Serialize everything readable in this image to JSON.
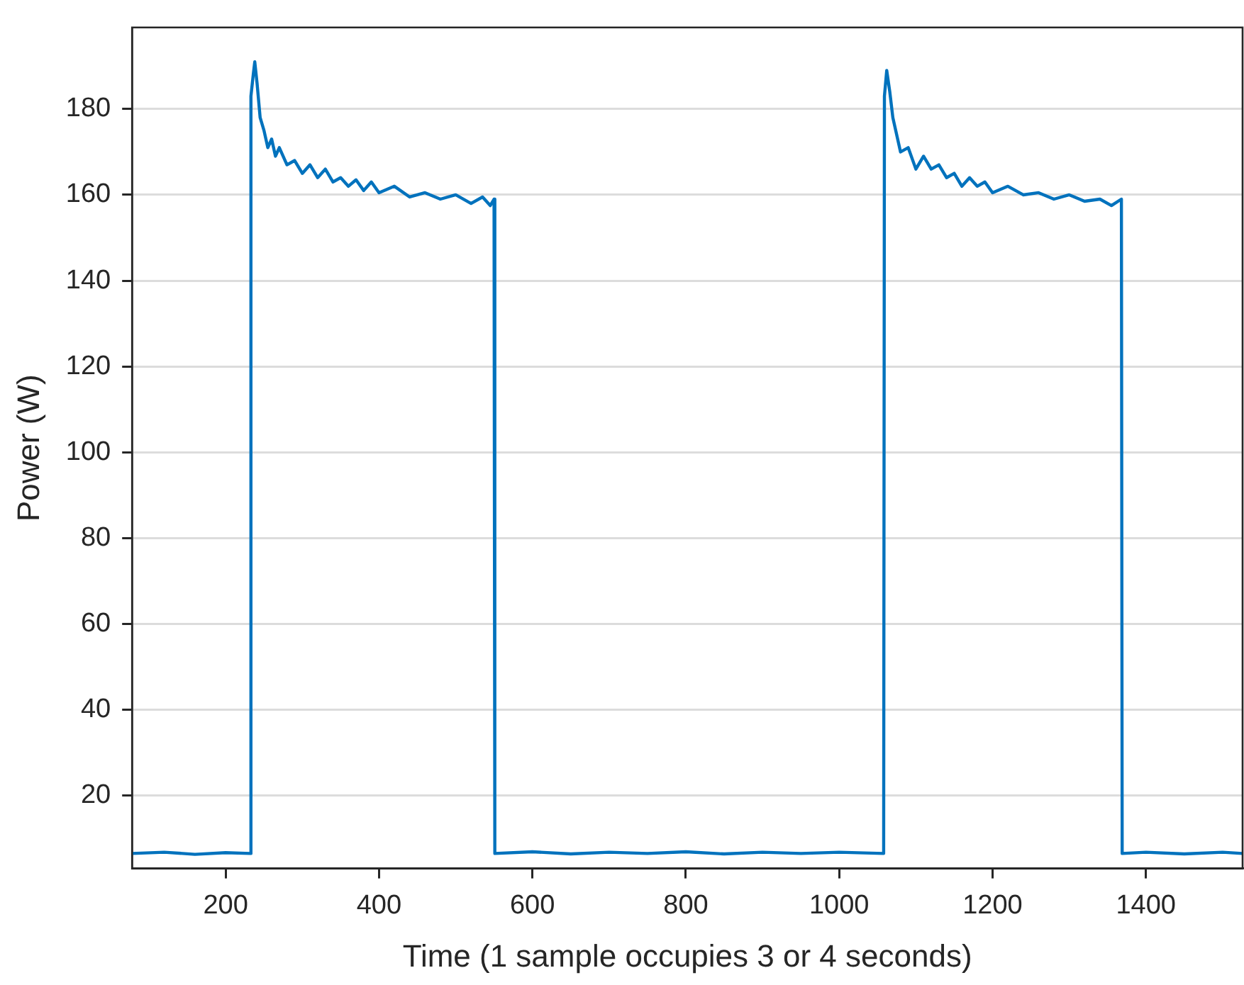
{
  "chart_data": {
    "type": "line",
    "xlabel": "Time (1 sample occupies 3 or 4 seconds)",
    "ylabel": "Power (W)",
    "xlim": [
      78,
      1526
    ],
    "ylim": [
      3,
      199
    ],
    "xticks": [
      200,
      400,
      600,
      800,
      1000,
      1200,
      1400
    ],
    "yticks": [
      20,
      40,
      60,
      80,
      100,
      120,
      140,
      160,
      180
    ],
    "grid": "y",
    "legend": false,
    "marker": "none",
    "line_style": "solid",
    "x": [
      78,
      120,
      160,
      200,
      232,
      233,
      236,
      238,
      241,
      245,
      250,
      255,
      260,
      265,
      270,
      280,
      290,
      300,
      310,
      320,
      330,
      340,
      350,
      360,
      370,
      380,
      390,
      400,
      420,
      440,
      460,
      480,
      500,
      520,
      535,
      545,
      550,
      551,
      600,
      650,
      700,
      750,
      800,
      850,
      900,
      950,
      1000,
      1058,
      1059,
      1062,
      1066,
      1070,
      1075,
      1080,
      1090,
      1100,
      1110,
      1120,
      1130,
      1140,
      1150,
      1160,
      1170,
      1180,
      1190,
      1200,
      1220,
      1240,
      1260,
      1280,
      1300,
      1320,
      1340,
      1355,
      1368,
      1369,
      1400,
      1450,
      1500,
      1526
    ],
    "series": [
      {
        "color": "#0072bd",
        "values": [
          6.5,
          6.8,
          6.3,
          6.7,
          6.5,
          183,
          188,
          191,
          186,
          178,
          175,
          171,
          173,
          169,
          171,
          167,
          168,
          165,
          167,
          164,
          166,
          163,
          164,
          162,
          163.5,
          161,
          163,
          160.5,
          162,
          159.5,
          160.5,
          159,
          160,
          158,
          159.5,
          157.5,
          159,
          6.5,
          6.9,
          6.4,
          6.8,
          6.5,
          6.9,
          6.4,
          6.8,
          6.5,
          6.8,
          6.5,
          183,
          189,
          184,
          178,
          174,
          170,
          171,
          166,
          169,
          166,
          167,
          164,
          165,
          162,
          164,
          162,
          163,
          160.5,
          162,
          160,
          160.5,
          159,
          160,
          158.5,
          159,
          157.5,
          159,
          6.5,
          6.8,
          6.4,
          6.8,
          6.5
        ]
      }
    ]
  }
}
